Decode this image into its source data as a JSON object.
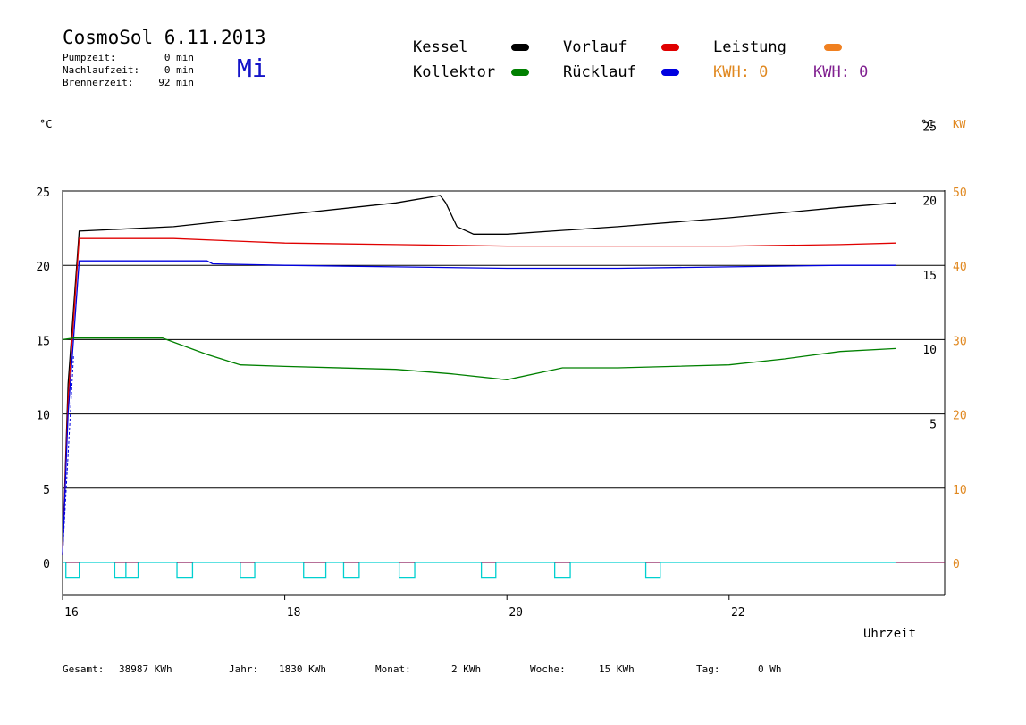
{
  "header": {
    "title": "CosmoSol 6.11.2013",
    "day": "Mi",
    "stats": [
      {
        "label": "Pumpzeit:",
        "value": "0 min"
      },
      {
        "label": "Nachlaufzeit:",
        "value": "0 min"
      },
      {
        "label": "Brennerzeit:",
        "value": "92 min"
      }
    ]
  },
  "legend": {
    "items": [
      {
        "label": "Kessel",
        "color": "#000000"
      },
      {
        "label": "Vorlauf",
        "color": "#e00000"
      },
      {
        "label": "Leistung",
        "color": "#f08020"
      },
      {
        "label": "Kollektor",
        "color": "#008000"
      },
      {
        "label": "Rücklauf",
        "color": "#0000e0"
      }
    ],
    "kwh_orange": "KWH: 0",
    "kwh_purple": "KWH: 0",
    "kwh_orange_color": "#e08820",
    "kwh_purple_color": "#802090"
  },
  "axes": {
    "left_unit": "°C",
    "right_unit": "°C",
    "right_unit2": "KW",
    "xlabel": "Uhrzeit"
  },
  "footer": {
    "gesamt_label": "Gesamt:",
    "gesamt_value": "38987 KWh",
    "jahr_label": "Jahr:",
    "jahr_value": "1830 KWh",
    "monat_label": "Monat:",
    "monat_value": "2 KWh",
    "woche_label": "Woche:",
    "woche_value": "15 KWh",
    "tag_label": "Tag:",
    "tag_value": "0 Wh"
  },
  "chart_data": {
    "type": "line",
    "x_unit": "hour",
    "xlim": [
      16,
      23.9
    ],
    "x_ticks": [
      16,
      18,
      20,
      22
    ],
    "y_left_ticks": [
      0,
      5,
      10,
      15,
      20,
      25
    ],
    "y_left_lim": [
      -2,
      25.3
    ],
    "y_right_ticks": [
      5,
      10,
      15,
      20,
      25
    ],
    "y_right_offset": 4.9,
    "y_right2_ticks": [
      0,
      10,
      20,
      30,
      40,
      50
    ],
    "grid_y": [
      0,
      5,
      10,
      15,
      20,
      25
    ],
    "series": [
      {
        "name": "Kessel",
        "color": "#000000",
        "x": [
          16,
          16.05,
          16.15,
          17,
          18,
          19,
          19.4,
          19.45,
          19.55,
          19.7,
          20,
          21,
          22,
          23,
          23.5
        ],
        "y": [
          0.5,
          12,
          22.3,
          22.6,
          23.4,
          24.2,
          24.7,
          24.2,
          22.6,
          22.1,
          22.1,
          22.6,
          23.2,
          23.9,
          24.2
        ]
      },
      {
        "name": "Vorlauf",
        "color": "#e00000",
        "x": [
          16,
          16.05,
          16.15,
          17,
          18,
          19,
          20,
          21,
          22,
          23,
          23.5
        ],
        "y": [
          0.5,
          11,
          21.8,
          21.8,
          21.5,
          21.4,
          21.3,
          21.3,
          21.3,
          21.4,
          21.5
        ]
      },
      {
        "name": "Rücklauf",
        "color": "#0000e0",
        "x": [
          16,
          16.05,
          16.15,
          17.3,
          17.35,
          18,
          19,
          20,
          21,
          22,
          23,
          23.5
        ],
        "y": [
          0.5,
          10,
          20.3,
          20.3,
          20.1,
          20.0,
          19.9,
          19.8,
          19.8,
          19.9,
          20.0,
          20.0
        ],
        "dashed_part": [
          [
            16,
            0.5
          ],
          [
            16.1,
            14
          ]
        ]
      },
      {
        "name": "Kollektor",
        "color": "#008000",
        "x": [
          16,
          16.1,
          16.9,
          17.3,
          17.6,
          18,
          19,
          19.5,
          20,
          20.5,
          21,
          22,
          22.5,
          23,
          23.5
        ],
        "y": [
          15,
          15.1,
          15.1,
          14.0,
          13.3,
          13.2,
          13.0,
          12.7,
          12.3,
          13.1,
          13.1,
          13.3,
          13.7,
          14.2,
          14.4
        ]
      }
    ],
    "pump_pulses": {
      "color": "#00d0d0",
      "alt_color": "#8a1a5a",
      "baseline": 0,
      "depth": -1,
      "intervals": [
        [
          16.03,
          16.15
        ],
        [
          16.47,
          16.57
        ],
        [
          16.57,
          16.68
        ],
        [
          17.03,
          17.17
        ],
        [
          17.6,
          17.73
        ],
        [
          18.17,
          18.37
        ],
        [
          18.53,
          18.67
        ],
        [
          19.03,
          19.17
        ],
        [
          19.77,
          19.9
        ],
        [
          20.43,
          20.57
        ],
        [
          21.25,
          21.38
        ]
      ]
    }
  }
}
